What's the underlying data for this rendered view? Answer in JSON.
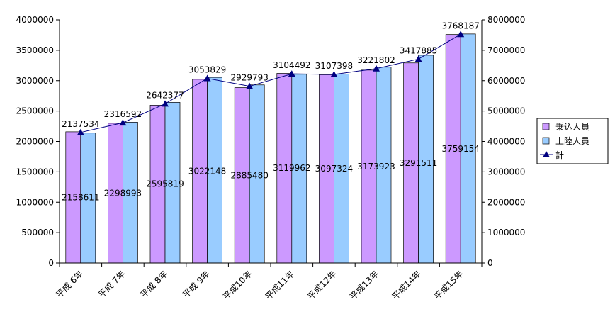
{
  "chart_data": {
    "type": "bar",
    "categories": [
      "平成 6年",
      "平成 7年",
      "平成 8年",
      "平成 9年",
      "平成10年",
      "平成11年",
      "平成12年",
      "平成13年",
      "平成14年",
      "平成15年"
    ],
    "series": [
      {
        "name": "乗込人員",
        "type": "bar",
        "axis": "left",
        "color": "#cc99ff",
        "values": [
          2158611,
          2298993,
          2595819,
          3022148,
          2885480,
          3119962,
          3097324,
          3173923,
          3291511,
          3759154
        ]
      },
      {
        "name": "上陸人員",
        "type": "bar",
        "axis": "left",
        "color": "#99ccff",
        "values": [
          2137534,
          2316592,
          2642377,
          3053829,
          2929793,
          3104492,
          3107398,
          3221802,
          3417885,
          3768187
        ]
      },
      {
        "name": "計",
        "type": "line",
        "axis": "right",
        "color": "#000080",
        "values": [
          4296145,
          4615585,
          5238196,
          6075977,
          5815273,
          6224454,
          6204722,
          6395725,
          6709396,
          7527341
        ]
      }
    ],
    "y_left": {
      "min": 0,
      "max": 4000000,
      "step": 500000
    },
    "y_right": {
      "min": 0,
      "max": 8000000,
      "step": 1000000
    },
    "grid": false,
    "legend_position": "right"
  }
}
